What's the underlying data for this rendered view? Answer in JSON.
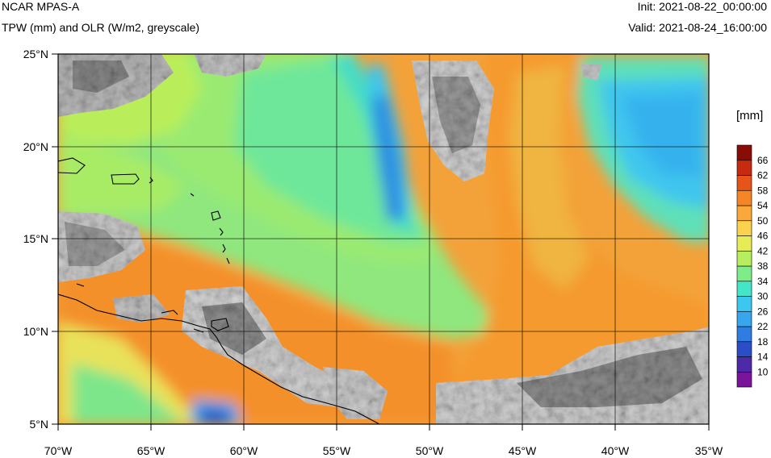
{
  "header": {
    "title": "NCAR MPAS-A",
    "subtitle": "TPW (mm) and OLR (W/m2, greyscale)",
    "init": "Init: 2021-08-22_00:00:00",
    "valid": "Valid: 2021-08-24_16:00:00"
  },
  "map": {
    "lon_range": [
      -70,
      -35
    ],
    "lat_range": [
      5,
      25
    ],
    "lon_ticks": [
      {
        "value": -70,
        "label": "70°W"
      },
      {
        "value": -65,
        "label": "65°W"
      },
      {
        "value": -60,
        "label": "60°W"
      },
      {
        "value": -55,
        "label": "55°W"
      },
      {
        "value": -50,
        "label": "50°W"
      },
      {
        "value": -45,
        "label": "45°W"
      },
      {
        "value": -40,
        "label": "40°W"
      },
      {
        "value": -35,
        "label": "35°W"
      }
    ],
    "lat_ticks": [
      {
        "value": 25,
        "label": "25°N"
      },
      {
        "value": 20,
        "label": "20°N"
      },
      {
        "value": 15,
        "label": "15°N"
      },
      {
        "value": 10,
        "label": "10°N"
      },
      {
        "value": 5,
        "label": "5°N"
      }
    ],
    "gridlines": true
  },
  "colorbar": {
    "unit_label": "[mm]",
    "levels": [
      "10",
      "14",
      "18",
      "22",
      "26",
      "30",
      "34",
      "38",
      "42",
      "46",
      "50",
      "54",
      "58",
      "62",
      "66"
    ],
    "colors": [
      "#7a149a",
      "#4d2aa8",
      "#2a4dc8",
      "#2f7de0",
      "#36a6ee",
      "#3cc8ee",
      "#44e6c8",
      "#7eec88",
      "#b6ee5e",
      "#e6ec56",
      "#fad24e",
      "#faa83c",
      "#f48628",
      "#e6541a",
      "#c82a10",
      "#8a0c06"
    ],
    "greyscale_colors": [
      "#ffffff",
      "#d6d6d6",
      "#9a9a9a",
      "#5a5a5a"
    ]
  }
}
